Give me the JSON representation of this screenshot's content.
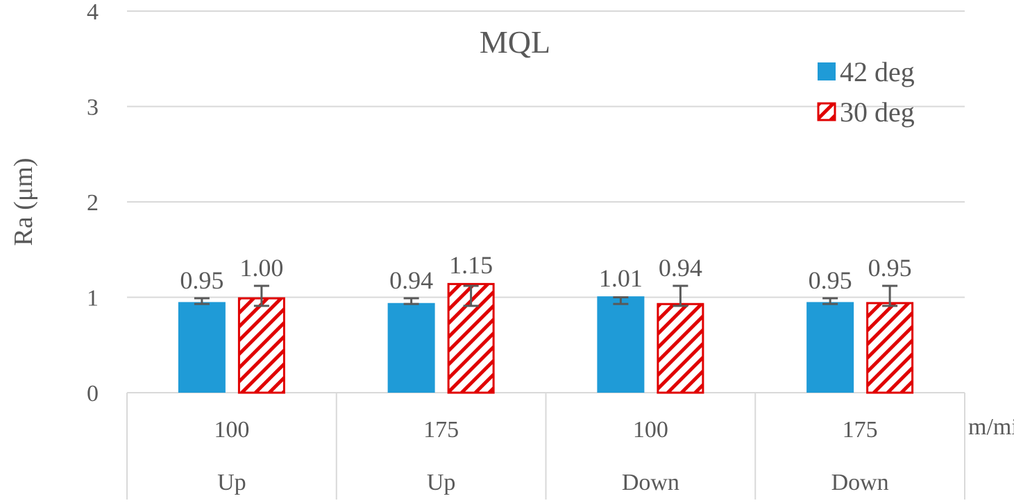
{
  "chart_data": {
    "type": "bar",
    "title": "MQL",
    "ylabel": "Ra (μm)",
    "xlabel": "",
    "x_unit_label": "m/min",
    "ylim": [
      0,
      4
    ],
    "yticks": [
      "0",
      "1",
      "2",
      "3",
      "4"
    ],
    "grid": true,
    "legend_position": "top-right",
    "categories": [
      {
        "speed": "100",
        "direction": "Up"
      },
      {
        "speed": "175",
        "direction": "Up"
      },
      {
        "speed": "100",
        "direction": "Down"
      },
      {
        "speed": "175",
        "direction": "Down"
      }
    ],
    "series": [
      {
        "name": "42 deg",
        "color": "#1f9bd7",
        "fill": "solid",
        "values": [
          0.95,
          0.94,
          1.01,
          0.95
        ],
        "labels": [
          "0.95",
          "0.94",
          "1.01",
          "0.95"
        ],
        "error_low": [
          0.93,
          0.93,
          0.93,
          0.93
        ],
        "error_high": [
          0.99,
          0.99,
          1.0,
          0.99
        ]
      },
      {
        "name": "30 deg",
        "color": "#e00000",
        "fill": "hatched",
        "values": [
          1.0,
          1.15,
          0.94,
          0.95
        ],
        "labels": [
          "1.00",
          "1.15",
          "0.94",
          "0.95"
        ],
        "error_low": [
          0.91,
          0.91,
          0.91,
          0.91
        ],
        "error_high": [
          1.12,
          1.12,
          1.12,
          1.12
        ]
      }
    ]
  }
}
